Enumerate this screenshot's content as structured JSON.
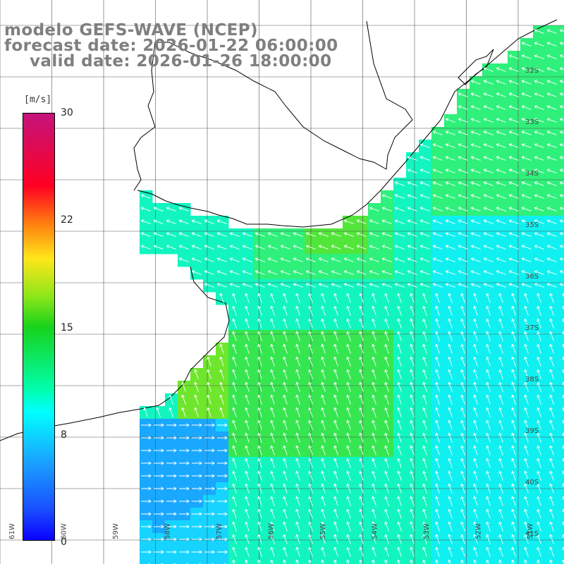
{
  "titles": {
    "model": "modelo GEFS-WAVE (NCEP)",
    "forecast": "forecast date: 2026-01-22 06:00:00",
    "valid": "valid date: 2026-01-26 18:00:00"
  },
  "colorbar": {
    "unit": "[m/s]",
    "ticks": [
      "30",
      "22",
      "15",
      "8",
      "0"
    ],
    "range": [
      0,
      30
    ],
    "colors": [
      "#0a00ff",
      "#1aa0ff",
      "#00ffff",
      "#18d21b",
      "#ffe61a",
      "#ff7a10",
      "#ff0022",
      "#c4137c"
    ]
  },
  "map": {
    "lat_labels": [
      "32S",
      "33S",
      "34S",
      "35S",
      "36S",
      "37S",
      "38S",
      "39S",
      "40S",
      "41S"
    ],
    "lon_labels": [
      "61W",
      "60W",
      "59W",
      "58W",
      "57W",
      "56W",
      "55W",
      "54W",
      "53W",
      "52W",
      "51W"
    ],
    "colors": {
      "land": "#ffffff",
      "coast": "#000000",
      "grid": "#555555",
      "arrows": "#ffffff"
    }
  }
}
